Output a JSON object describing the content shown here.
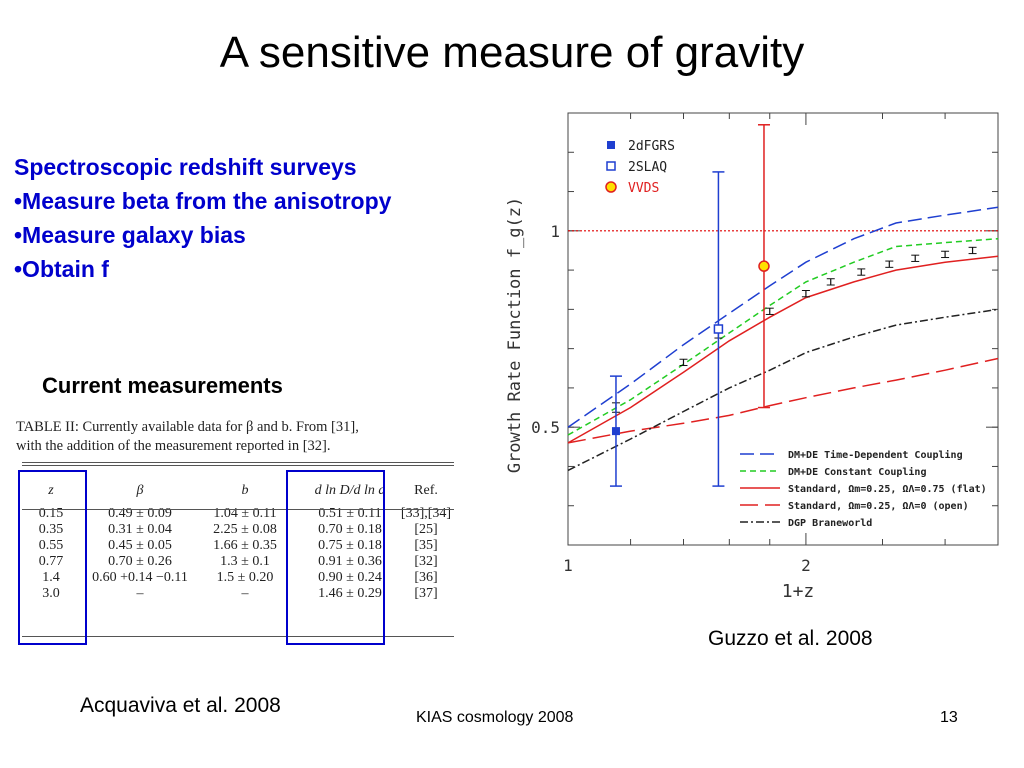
{
  "slide": {
    "title": "A sensitive measure of gravity",
    "bullets": [
      "Spectroscopic redshift surveys",
      "•Measure beta from the anisotropy",
      "•Measure galaxy bias",
      "•Obtain f"
    ],
    "current_heading": "Current measurements",
    "cite_left": "Acquaviva et al. 2008",
    "cite_right": "Guzzo et al. 2008",
    "footer_center": "KIAS cosmology 2008",
    "footer_number": "13"
  },
  "table": {
    "caption_line1": "TABLE II: Currently available data for β and b. From [31],",
    "caption_line2": "with the addition of the measurement reported in [32].",
    "headers": [
      "z",
      "β",
      "b",
      "d ln D/d ln a",
      "Ref."
    ],
    "rows": [
      [
        "0.15",
        "0.49 ± 0.09",
        "1.04 ± 0.11",
        "0.51 ± 0.11",
        "[33],[34]"
      ],
      [
        "0.35",
        "0.31 ± 0.04",
        "2.25 ± 0.08",
        "0.70 ± 0.18",
        "[25]"
      ],
      [
        "0.55",
        "0.45 ± 0.05",
        "1.66 ± 0.35",
        "0.75 ± 0.18",
        "[35]"
      ],
      [
        "0.77",
        "0.70 ± 0.26",
        "1.3 ± 0.1",
        "0.91 ± 0.36",
        "[32]"
      ],
      [
        "1.4",
        "0.60 +0.14 −0.11",
        "1.5 ± 0.20",
        "0.90 ± 0.24",
        "[36]"
      ],
      [
        "3.0",
        "–",
        "–",
        "1.46 ± 0.29",
        "[37]"
      ]
    ],
    "highlight_color": "#0000cc"
  },
  "chart_data": {
    "type": "line",
    "xlabel": "1+z",
    "ylabel": "Growth Rate Function f_g(z)",
    "xscale": "log",
    "xlim": [
      1.0,
      3.5
    ],
    "ylim": [
      0.2,
      1.3
    ],
    "xticks": [
      {
        "v": 1,
        "label": "1"
      },
      {
        "v": 2,
        "label": "2"
      }
    ],
    "yticks": [
      {
        "v": 0.5,
        "label": "0.5"
      },
      {
        "v": 1.0,
        "label": "1"
      }
    ],
    "reference_line": {
      "y": 1.0,
      "color": "#e00000",
      "style": "dotted"
    },
    "series": [
      {
        "name": "DM+DE Time-Dependent Coupling",
        "color": "#1f3fd0",
        "dash": "14,6",
        "x": [
          1.0,
          1.2,
          1.4,
          1.6,
          1.8,
          2.0,
          2.3,
          2.6,
          3.0,
          3.5
        ],
        "y": [
          0.5,
          0.61,
          0.71,
          0.79,
          0.86,
          0.92,
          0.98,
          1.02,
          1.04,
          1.06
        ]
      },
      {
        "name": "DM+DE Constant Coupling",
        "color": "#22cc22",
        "dash": "6,4",
        "x": [
          1.0,
          1.2,
          1.4,
          1.6,
          1.8,
          2.0,
          2.3,
          2.6,
          3.0,
          3.5
        ],
        "y": [
          0.48,
          0.57,
          0.66,
          0.74,
          0.81,
          0.87,
          0.92,
          0.96,
          0.97,
          0.98
        ]
      },
      {
        "name": "Standard, Ωm=0.25, ΩΛ=0.75 (flat)",
        "color": "#e02020",
        "dash": "",
        "x": [
          1.0,
          1.2,
          1.4,
          1.6,
          1.8,
          2.0,
          2.3,
          2.6,
          3.0,
          3.5
        ],
        "y": [
          0.46,
          0.55,
          0.64,
          0.72,
          0.78,
          0.83,
          0.87,
          0.9,
          0.92,
          0.935
        ]
      },
      {
        "name": "Standard, Ωm=0.25, ΩΛ=0 (open)",
        "color": "#e02020",
        "dash": "18,7",
        "x": [
          1.0,
          1.2,
          1.4,
          1.6,
          1.8,
          2.0,
          2.3,
          2.6,
          3.0,
          3.5
        ],
        "y": [
          0.46,
          0.49,
          0.51,
          0.53,
          0.555,
          0.575,
          0.6,
          0.62,
          0.645,
          0.675
        ]
      },
      {
        "name": "DGP Braneworld",
        "color": "#222222",
        "dash": "8,3,2,3",
        "x": [
          1.0,
          1.2,
          1.4,
          1.6,
          1.8,
          2.0,
          2.3,
          2.6,
          3.0,
          3.5
        ],
        "y": [
          0.39,
          0.47,
          0.54,
          0.6,
          0.645,
          0.69,
          0.73,
          0.76,
          0.78,
          0.8
        ]
      }
    ],
    "model_points": {
      "color": "#111111",
      "x": [
        1.15,
        1.4,
        1.55,
        1.8,
        2.0,
        2.15,
        2.35,
        2.55,
        2.75,
        3.0,
        3.25
      ],
      "y": [
        0.55,
        0.665,
        0.735,
        0.795,
        0.84,
        0.87,
        0.895,
        0.915,
        0.93,
        0.94,
        0.95
      ],
      "err": [
        0.012,
        0.008,
        0.008,
        0.008,
        0.008,
        0.008,
        0.008,
        0.008,
        0.008,
        0.008,
        0.008
      ]
    },
    "data_points": [
      {
        "name": "2dFGRS",
        "x": 1.15,
        "y": 0.49,
        "err_low": 0.14,
        "err_high": 0.14,
        "marker": "filled-square",
        "color": "#1f3fd0"
      },
      {
        "name": "2SLAQ",
        "x": 1.55,
        "y": 0.75,
        "err_low": 0.4,
        "err_high": 0.4,
        "marker": "open-square",
        "color": "#1f3fd0"
      },
      {
        "name": "VVDS",
        "x": 1.77,
        "y": 0.91,
        "err_low": 0.36,
        "err_high": 0.36,
        "marker": "circle",
        "color": "#e02020",
        "fill": "#ffe000"
      }
    ],
    "legend_top": [
      "2dFGRS",
      "2SLAQ",
      "VVDS"
    ],
    "legend_bottom_placement": "bottom-right",
    "legend_top_placement": "top-left"
  }
}
